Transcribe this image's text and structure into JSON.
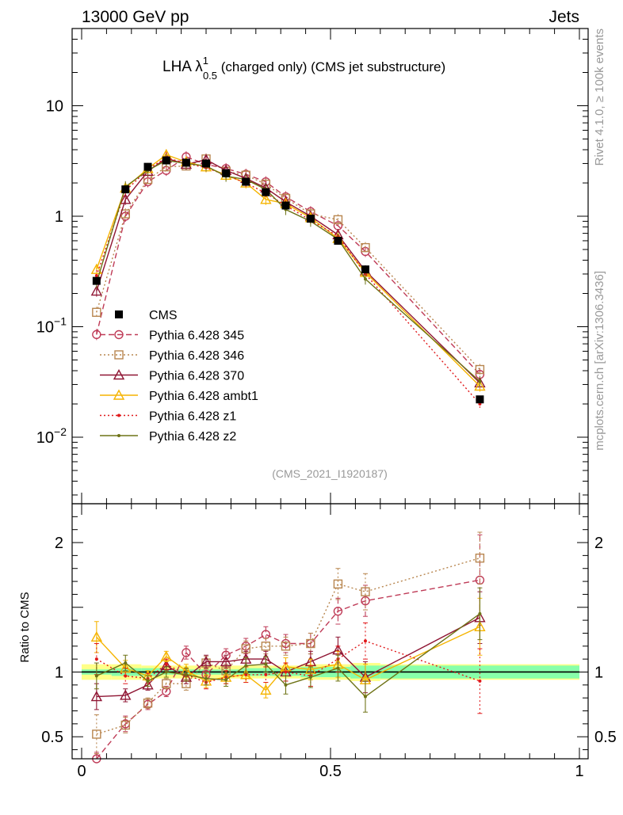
{
  "header": {
    "left": "13000 GeV pp",
    "right": "Jets"
  },
  "side_labels": {
    "rivet": "Rivet 4.1.0, ≥ 100k events",
    "mcplots": "mcplots.cern.ch [arXiv:1306.3436]"
  },
  "chart_data": {
    "type": "line",
    "title_main": "LHA λ",
    "title_sup": "1",
    "title_sub": "0.5",
    "title_rest": " (charged only) (CMS jet substructure)",
    "analysis": "(CMS_2021_I1920187)",
    "xlim": [
      0,
      1
    ],
    "ylim_main": [
      0.0025,
      50
    ],
    "yscale_main": "log",
    "main_ticks": [
      {
        "value": 10,
        "base": "10",
        "exp": ""
      },
      {
        "value": 1,
        "base": "1",
        "exp": ""
      },
      {
        "value": 0.1,
        "base": "10",
        "exp": "−1"
      },
      {
        "value": 0.01,
        "base": "10",
        "exp": "−2"
      }
    ],
    "ylim_ratio": [
      0.33,
      2.3
    ],
    "ratio_ticks": [
      {
        "value": 2,
        "label": "2"
      },
      {
        "value": 1,
        "label": "1"
      },
      {
        "value": 0.5,
        "label": "0.5"
      }
    ],
    "ratio_ylabel": "Ratio to CMS",
    "x_ticks": [
      {
        "value": 0,
        "label": "0"
      },
      {
        "value": 0.5,
        "label": "0.5"
      },
      {
        "value": 1,
        "label": "1"
      }
    ],
    "bins": [
      [
        0,
        0.06
      ],
      [
        0.06,
        0.12
      ],
      [
        0.12,
        0.16
      ],
      [
        0.16,
        0.2
      ],
      [
        0.2,
        0.24
      ],
      [
        0.24,
        0.28
      ],
      [
        0.28,
        0.32
      ],
      [
        0.32,
        0.36
      ],
      [
        0.36,
        0.4
      ],
      [
        0.4,
        0.44
      ],
      [
        0.44,
        0.48
      ],
      [
        0.48,
        0.54
      ],
      [
        0.54,
        0.6
      ],
      [
        0.6,
        1.0
      ]
    ],
    "x": [
      0.03,
      0.088,
      0.133,
      0.17,
      0.21,
      0.25,
      0.29,
      0.33,
      0.37,
      0.41,
      0.46,
      0.515,
      0.57,
      0.8
    ],
    "data": {
      "name": "CMS",
      "values": [
        0.26,
        1.75,
        2.8,
        3.2,
        3.05,
        3.0,
        2.45,
        2.05,
        1.65,
        1.25,
        0.95,
        0.6,
        0.33,
        0.022
      ],
      "rel_stat": [
        0.02,
        0.03,
        0.03,
        0.02,
        0.02,
        0.02,
        0.02,
        0.03,
        0.03,
        0.03,
        0.04,
        0.04,
        0.05,
        0.05
      ],
      "rel_total": [
        0.06,
        0.06,
        0.05,
        0.05,
        0.05,
        0.05,
        0.05,
        0.05,
        0.05,
        0.05,
        0.06,
        0.06,
        0.07,
        0.06
      ]
    },
    "series": [
      {
        "name": "Pythia 6.428 345",
        "color": "#bf3b57",
        "marker": "circle",
        "dash": "7,4",
        "values": [
          0.085,
          1.0,
          2.05,
          2.6,
          3.45,
          2.95,
          2.7,
          2.4,
          2.05,
          1.5,
          1.1,
          0.82,
          0.48,
          0.037
        ],
        "ratio": [
          0.33,
          0.6,
          0.75,
          0.85,
          1.15,
          0.98,
          1.13,
          1.2,
          1.29,
          1.22,
          1.22,
          1.47,
          1.55,
          1.71
        ],
        "ratio_err": [
          0.05,
          0.06,
          0.04,
          0.04,
          0.05,
          0.05,
          0.05,
          0.06,
          0.06,
          0.07,
          0.08,
          0.1,
          0.12,
          0.35
        ]
      },
      {
        "name": "Pythia 6.428 346",
        "color": "#b8864f",
        "marker": "square",
        "dash": "2,3",
        "values": [
          0.135,
          1.05,
          2.15,
          2.8,
          2.85,
          3.3,
          2.55,
          2.35,
          1.95,
          1.45,
          1.05,
          0.93,
          0.52,
          0.041
        ],
        "ratio": [
          0.52,
          0.59,
          0.76,
          0.91,
          0.91,
          1.07,
          1.01,
          1.18,
          1.2,
          1.2,
          1.22,
          1.68,
          1.62,
          1.88
        ],
        "ratio_err": [
          0.15,
          0.06,
          0.04,
          0.04,
          0.05,
          0.05,
          0.05,
          0.06,
          0.06,
          0.07,
          0.08,
          0.12,
          0.14,
          0.2
        ]
      },
      {
        "name": "Pythia 6.428 370",
        "color": "#8f1533",
        "marker": "triangle",
        "dash": "",
        "values": [
          0.21,
          1.42,
          2.55,
          3.35,
          2.95,
          3.25,
          2.6,
          2.2,
          1.8,
          1.35,
          1.0,
          0.68,
          0.32,
          0.031
        ],
        "ratio": [
          0.81,
          0.82,
          0.9,
          1.05,
          0.96,
          1.08,
          1.08,
          1.1,
          1.1,
          1.0,
          1.08,
          1.17,
          0.96,
          1.42
        ],
        "ratio_err": [
          0.1,
          0.05,
          0.04,
          0.04,
          0.05,
          0.05,
          0.05,
          0.06,
          0.06,
          0.07,
          0.08,
          0.1,
          0.12,
          0.2
        ]
      },
      {
        "name": "Pythia 6.428 ambt1",
        "color": "#f5b400",
        "marker": "triangle",
        "dash": "",
        "values": [
          0.33,
          1.8,
          2.7,
          3.6,
          3.1,
          2.8,
          2.35,
          2.0,
          1.42,
          1.3,
          0.97,
          0.63,
          0.31,
          0.029
        ],
        "ratio": [
          1.27,
          1.03,
          0.97,
          1.12,
          1.01,
          0.93,
          0.96,
          0.98,
          0.86,
          1.04,
          1.02,
          1.06,
          0.94,
          1.35
        ],
        "ratio_err": [
          0.12,
          0.06,
          0.04,
          0.04,
          0.05,
          0.05,
          0.05,
          0.06,
          0.06,
          0.07,
          0.08,
          0.1,
          0.12,
          0.22
        ]
      },
      {
        "name": "Pythia 6.428 z1",
        "color": "#e0191b",
        "marker": "dot",
        "dash": "2,3",
        "values": [
          0.29,
          1.7,
          2.65,
          3.4,
          3.0,
          2.75,
          2.35,
          2.0,
          1.62,
          1.25,
          0.92,
          0.66,
          0.3,
          0.02
        ],
        "ratio": [
          1.1,
          0.97,
          0.95,
          1.06,
          0.98,
          0.92,
          0.96,
          0.98,
          0.98,
          1.0,
          0.97,
          1.1,
          1.24,
          0.93
        ],
        "ratio_err": [
          0.12,
          0.06,
          0.04,
          0.04,
          0.05,
          0.05,
          0.05,
          0.06,
          0.06,
          0.07,
          0.08,
          0.1,
          0.14,
          0.25
        ]
      },
      {
        "name": "Pythia 6.428 z2",
        "color": "#6e7316",
        "marker": "dot",
        "dash": "",
        "values": [
          0.25,
          1.85,
          2.6,
          3.2,
          3.0,
          2.85,
          2.3,
          2.15,
          1.75,
          1.15,
          0.9,
          0.62,
          0.27,
          0.032
        ],
        "ratio": [
          0.97,
          1.07,
          0.93,
          1.0,
          0.98,
          0.95,
          0.94,
          1.05,
          1.06,
          0.9,
          0.96,
          1.03,
          0.81,
          1.45
        ],
        "ratio_err": [
          0.1,
          0.06,
          0.04,
          0.04,
          0.05,
          0.05,
          0.05,
          0.06,
          0.06,
          0.07,
          0.08,
          0.1,
          0.12,
          0.2
        ]
      }
    ]
  }
}
